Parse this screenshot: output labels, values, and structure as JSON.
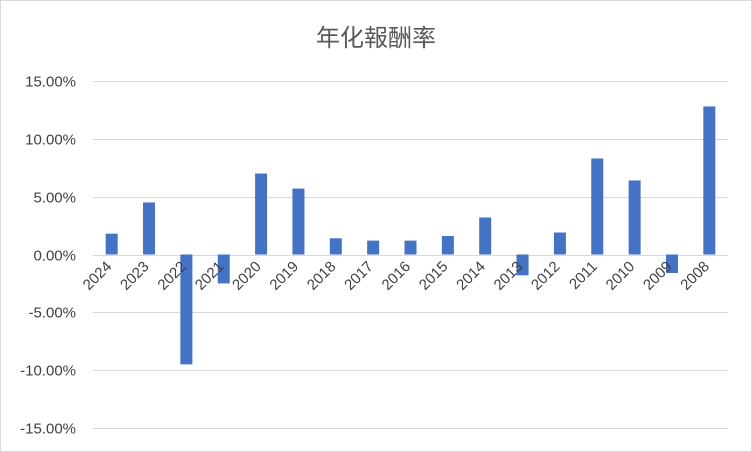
{
  "chart_data": {
    "type": "bar",
    "title": "年化報酬率",
    "xlabel": "",
    "ylabel": "",
    "categories": [
      "2024",
      "2023",
      "2022",
      "2021",
      "2020",
      "2019",
      "2018",
      "2017",
      "2016",
      "2015",
      "2014",
      "2013",
      "2012",
      "2011",
      "2010",
      "2009",
      "2008"
    ],
    "values": [
      1.8,
      4.5,
      -9.5,
      -2.5,
      7.0,
      5.7,
      1.4,
      1.2,
      1.2,
      1.6,
      3.2,
      -1.8,
      1.9,
      8.3,
      6.4,
      -1.6,
      12.8
    ],
    "ylim": [
      -15,
      15
    ],
    "yticks": [
      15,
      10,
      5,
      0,
      -5,
      -10,
      -15
    ],
    "ytick_labels": [
      "15.00%",
      "10.00%",
      "5.00%",
      "0.00%",
      "-5.00%",
      "-10.00%",
      "-15.00%"
    ],
    "grid": true,
    "legend": "none",
    "bar_color": "#4472c4",
    "grid_color": "#d9d9d9"
  }
}
